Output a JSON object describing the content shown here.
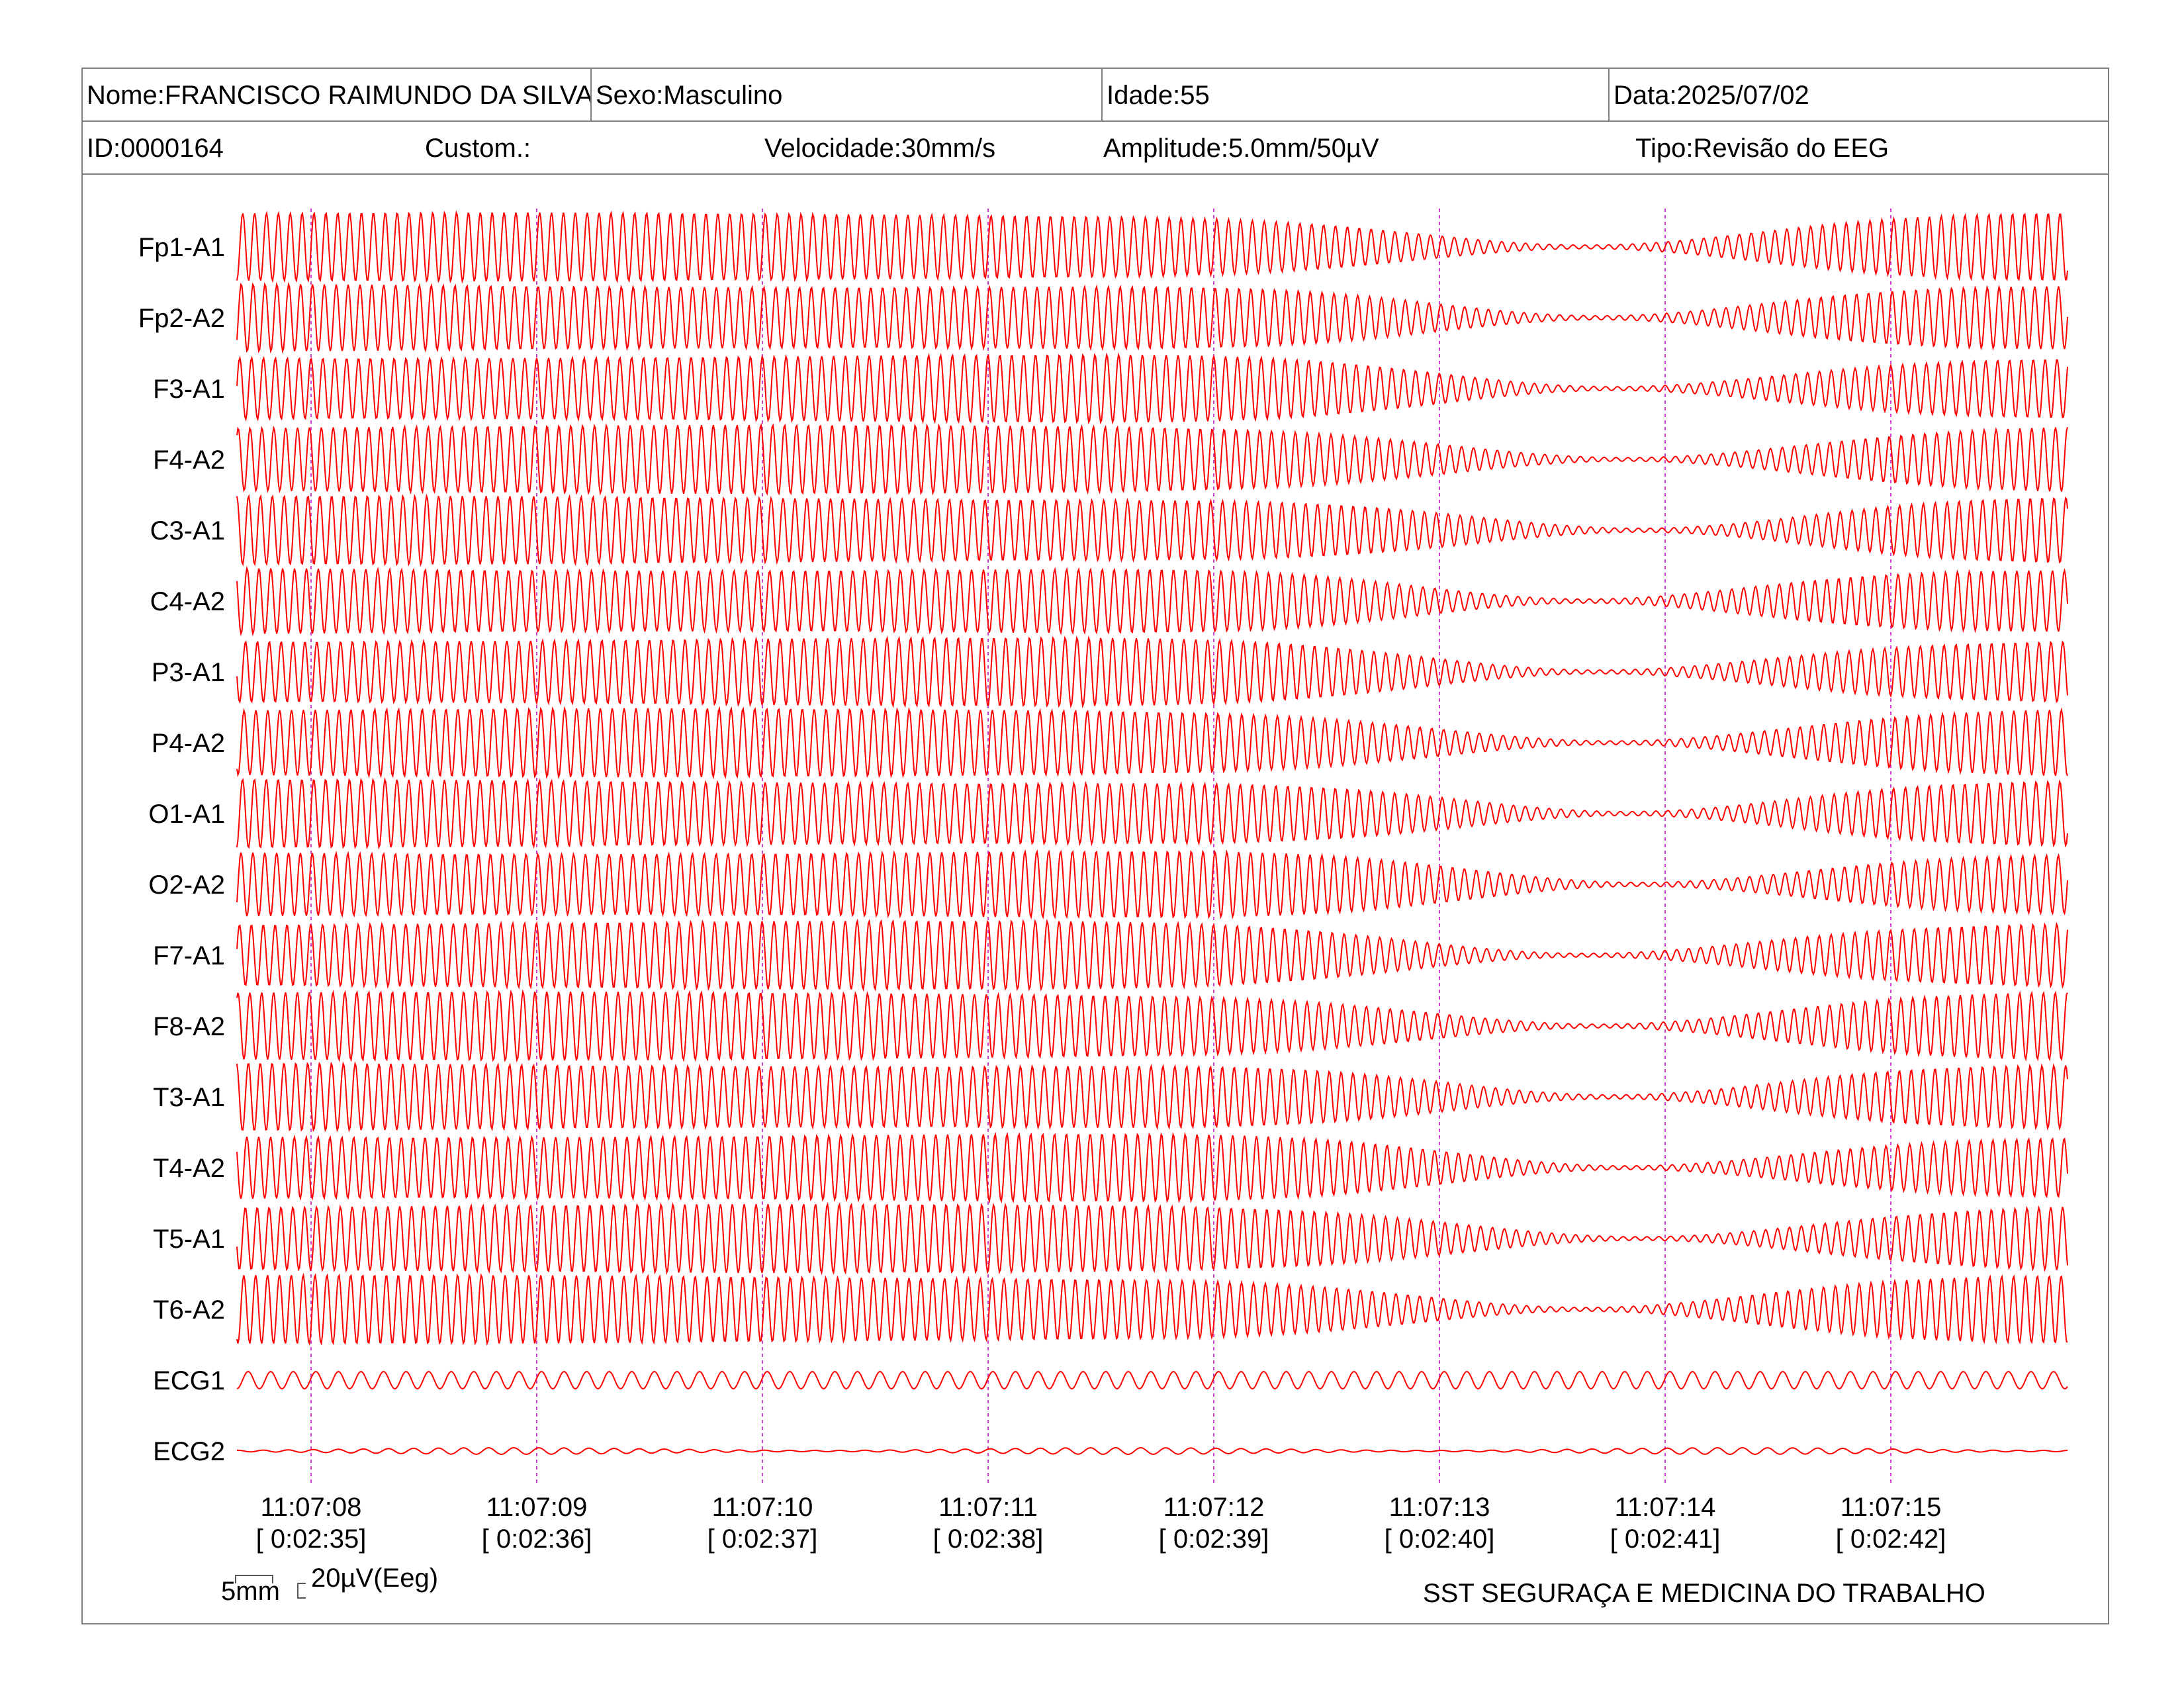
{
  "header": {
    "name": "Nome:FRANCISCO RAIMUNDO DA SILVA",
    "sex": "Sexo:Masculino",
    "age": "Idade:55",
    "date": "Data:2025/07/02",
    "id": "ID:0000164",
    "custom": "Custom.:",
    "speed": "Velocidade:30mm/s",
    "amplitude": "Amplitude:5.0mm/50µV",
    "type": "Tipo:Revisão do EEG"
  },
  "chart_data": {
    "type": "line",
    "channels": [
      "Fp1-A1",
      "Fp2-A2",
      "F3-A1",
      "F4-A2",
      "C3-A1",
      "C4-A2",
      "P3-A1",
      "P4-A2",
      "O1-A1",
      "O2-A2",
      "F7-A1",
      "F8-A2",
      "T3-A1",
      "T4-A2",
      "T5-A1",
      "T6-A2",
      "ECG1",
      "ECG2"
    ],
    "time_labels": [
      "11:07:08",
      "11:07:09",
      "11:07:10",
      "11:07:11",
      "11:07:12",
      "11:07:13",
      "11:07:14",
      "11:07:15"
    ],
    "elapsed_labels": [
      "[ 0:02:35]",
      "[ 0:02:36]",
      "[ 0:02:37]",
      "[ 0:02:38]",
      "[ 0:02:39]",
      "[ 0:02:40]",
      "[ 0:02:41]",
      "[ 0:02:42]"
    ],
    "trace_color": "#ff0000",
    "marker_color": "#cc44cc",
    "oscillation_hz": 19,
    "envelope_profile": "full amplitude, decreasing toward a minimum near 11:07:13-11:07:14, then recovering to full amplitude"
  },
  "scale": {
    "time": "5mm",
    "amplitude": "20µV(Eeg)"
  },
  "footer": {
    "clinic": "SST SEGURAÇA E MEDICINA DO TRABALHO"
  }
}
